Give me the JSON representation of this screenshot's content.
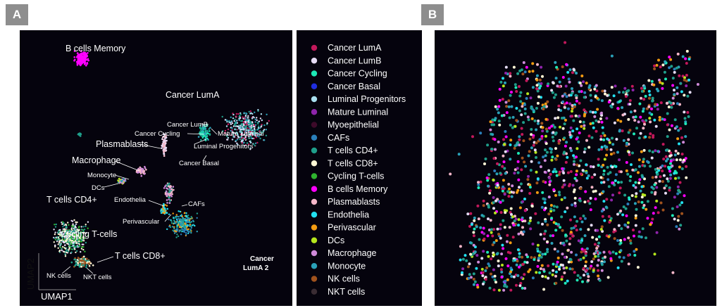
{
  "panel_a": {
    "tag": "A",
    "axis_x_label": "UMAP1",
    "axis_y_label": "UMAP2",
    "sample_label_line1": "Cancer",
    "sample_label_line2": "LumA 2"
  },
  "panel_b": {
    "tag": "B"
  },
  "legend": {
    "items": [
      {
        "label": "Cancer LumA",
        "color": "#c2185b"
      },
      {
        "label": "Cancer LumB",
        "color": "#e6dcf5"
      },
      {
        "label": "Cancer Cycling",
        "color": "#1de9b6"
      },
      {
        "label": "Cancer Basal",
        "color": "#1f2de0"
      },
      {
        "label": "Luminal Progenitors",
        "color": "#a9dff0"
      },
      {
        "label": "Mature Luminal",
        "color": "#8e24aa"
      },
      {
        "label": "Myoepithelial",
        "color": "#3d0a2a"
      },
      {
        "label": "CAFs",
        "color": "#2a7fba"
      },
      {
        "label": "T cells CD4+",
        "color": "#1f9e8a"
      },
      {
        "label": "T cells CD8+",
        "color": "#fff7d6"
      },
      {
        "label": "Cycling T-cells",
        "color": "#2fb32f"
      },
      {
        "label": "B cells Memory",
        "color": "#ff00ff"
      },
      {
        "label": "Plasmablasts",
        "color": "#f4b6c8"
      },
      {
        "label": "Endothelia",
        "color": "#22e0f0"
      },
      {
        "label": "Perivascular",
        "color": "#f39c12"
      },
      {
        "label": "DCs",
        "color": "#b5e61d"
      },
      {
        "label": "Macrophage",
        "color": "#cf8ad9"
      },
      {
        "label": "Monocyte",
        "color": "#2aa1b8"
      },
      {
        "label": "NK cells",
        "color": "#a0521d"
      },
      {
        "label": "NKT cells",
        "color": "#3a2c33"
      }
    ]
  },
  "chart_data": [
    {
      "type": "scatter",
      "title": "",
      "xlabel": "UMAP1",
      "ylabel": "UMAP2",
      "cluster_labels": [
        "B cells Memory",
        "Cancer LumA",
        "Cancer LumB",
        "Cancer Cycling",
        "Mature Luminal",
        "Luminal Progenitors",
        "Plasmablasts",
        "Cancer Basal",
        "Macrophage",
        "Monocyte",
        "DCs",
        "Endothelia",
        "CAFs",
        "Perivascular",
        "T cells CD4+",
        "Cycling T-cells",
        "T cells CD8+",
        "NK cells",
        "NKT cells"
      ],
      "annotation": "Cancer LumA 2"
    },
    {
      "type": "scatter",
      "title": "",
      "description_categories": "spatial map of cell types colored by legend"
    }
  ]
}
